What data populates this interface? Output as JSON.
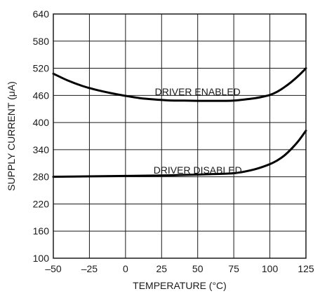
{
  "chart_data": {
    "type": "line",
    "title": "",
    "xlabel": "TEMPERATURE (°C)",
    "ylabel": "SUPPLY CURRENT (μA)",
    "xlim": [
      -50,
      125
    ],
    "ylim": [
      100,
      640
    ],
    "xticks": [
      -50,
      -25,
      0,
      25,
      50,
      75,
      100,
      125
    ],
    "yticks": [
      100,
      160,
      220,
      280,
      340,
      400,
      460,
      520,
      580,
      640
    ],
    "x_tick_labels": [
      "–50",
      "–25",
      "0",
      "25",
      "50",
      "75",
      "100",
      "125"
    ],
    "y_tick_labels": [
      "100",
      "160",
      "220",
      "280",
      "340",
      "400",
      "460",
      "520",
      "580",
      "640"
    ],
    "grid": true,
    "series": [
      {
        "name": "DRIVER ENABLED",
        "x": [
          -50,
          -40,
          -30,
          -20,
          -10,
          0,
          10,
          20,
          30,
          40,
          50,
          60,
          70,
          75,
          80,
          90,
          95,
          100,
          105,
          110,
          115,
          120,
          125
        ],
        "y": [
          508,
          493,
          481,
          472,
          465,
          459,
          454,
          451,
          449,
          448.5,
          448,
          448,
          448,
          448.5,
          450,
          454,
          457,
          461,
          468,
          478,
          490,
          504,
          520
        ]
      },
      {
        "name": "DRIVER DISABLED",
        "x": [
          -50,
          -25,
          0,
          25,
          50,
          60,
          70,
          75,
          80,
          90,
          100,
          105,
          110,
          115,
          120,
          125
        ],
        "y": [
          280,
          281,
          282,
          283,
          285,
          286,
          287,
          288,
          290,
          297,
          308,
          316,
          327,
          342,
          360,
          382
        ]
      }
    ]
  }
}
